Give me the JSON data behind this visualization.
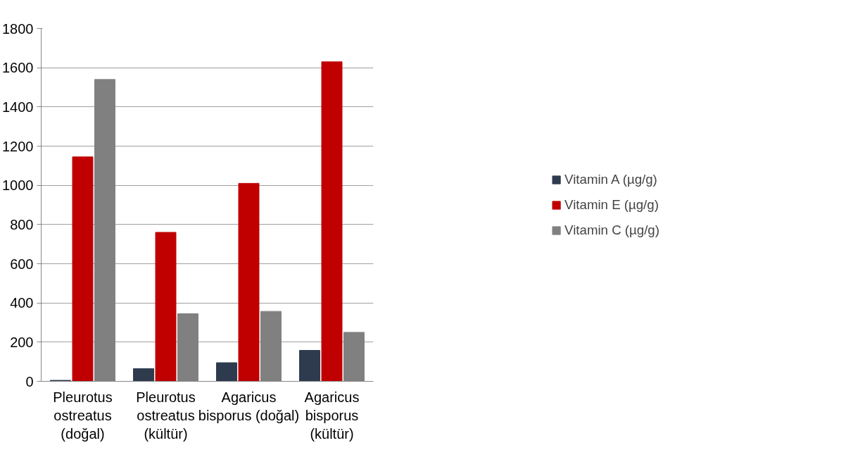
{
  "chart_data": {
    "type": "bar",
    "categories": [
      "Pleurotus ostreatus (doğal)",
      "Pleurotus ostreatus (kültür)",
      "Agaricus bisporus (doğal)",
      "Agaricus bisporus (kültür)"
    ],
    "series": [
      {
        "name": "Vitamin A (µg/g)",
        "color": "#2e3b4e",
        "values": [
          5,
          65,
          95,
          158
        ]
      },
      {
        "name": "Vitamin E (µg/g)",
        "color": "#c00000",
        "values": [
          1145,
          760,
          1010,
          1630
        ]
      },
      {
        "name": "Vitamin C (µg/g)",
        "color": "#808080",
        "values": [
          1540,
          345,
          357,
          250
        ]
      }
    ],
    "ylim": [
      0,
      1800
    ],
    "yticks": [
      0,
      200,
      400,
      600,
      800,
      1000,
      1200,
      1400,
      1600,
      1800
    ],
    "grid": "y",
    "legend": "right"
  }
}
